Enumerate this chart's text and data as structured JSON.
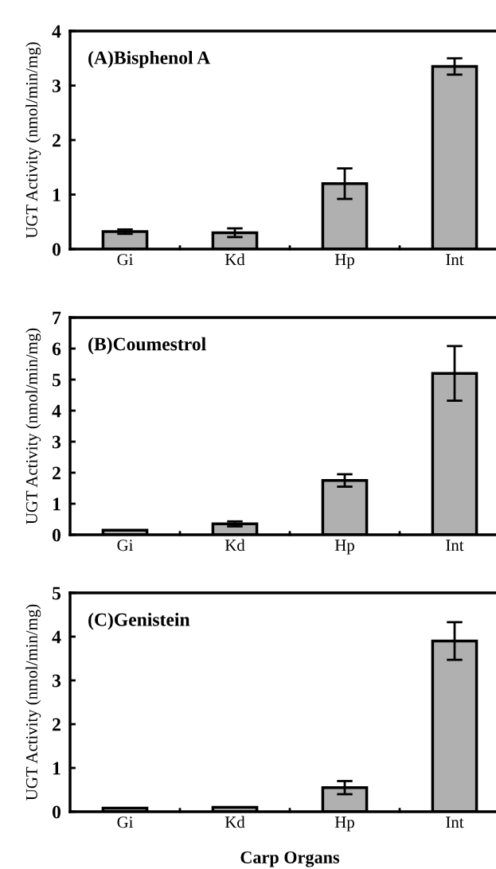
{
  "chart_data": [
    {
      "type": "bar",
      "categories": [
        "Gi",
        "Kd",
        "Hp",
        "Int"
      ],
      "ylabel": "UGT Activity (nmol/min/mg)",
      "annotations": [
        "(A)Bisphenol A"
      ],
      "ylim": [
        0,
        4
      ],
      "yticks": [
        0,
        1,
        2,
        3,
        4
      ],
      "color": "#b0b0b0",
      "values": [
        0.32,
        0.3,
        1.2,
        3.35
      ],
      "errors": [
        0.04,
        0.08,
        0.28,
        0.15
      ]
    },
    {
      "type": "bar",
      "categories": [
        "Gi",
        "Kd",
        "Hp",
        "Int"
      ],
      "ylabel": "UGT Activity (nmol/min/mg)",
      "annotations": [
        "(B)Coumestrol"
      ],
      "ylim": [
        0,
        7
      ],
      "yticks": [
        0,
        1,
        2,
        3,
        4,
        5,
        6,
        7
      ],
      "color": "#b0b0b0",
      "values": [
        0.15,
        0.35,
        1.75,
        5.2
      ],
      "errors": [
        null,
        0.08,
        0.2,
        0.88
      ]
    },
    {
      "type": "bar",
      "categories": [
        "Gi",
        "Kd",
        "Hp",
        "Int"
      ],
      "ylabel": "UGT Activity (nmol/min/mg)",
      "xlabel": "Carp Organs",
      "annotations": [
        "(C)Genistein"
      ],
      "ylim": [
        0,
        5
      ],
      "yticks": [
        0,
        1,
        2,
        3,
        4,
        5
      ],
      "color": "#b0b0b0",
      "values": [
        0.08,
        0.1,
        0.55,
        3.9
      ],
      "errors": [
        null,
        null,
        0.15,
        0.43
      ]
    }
  ]
}
